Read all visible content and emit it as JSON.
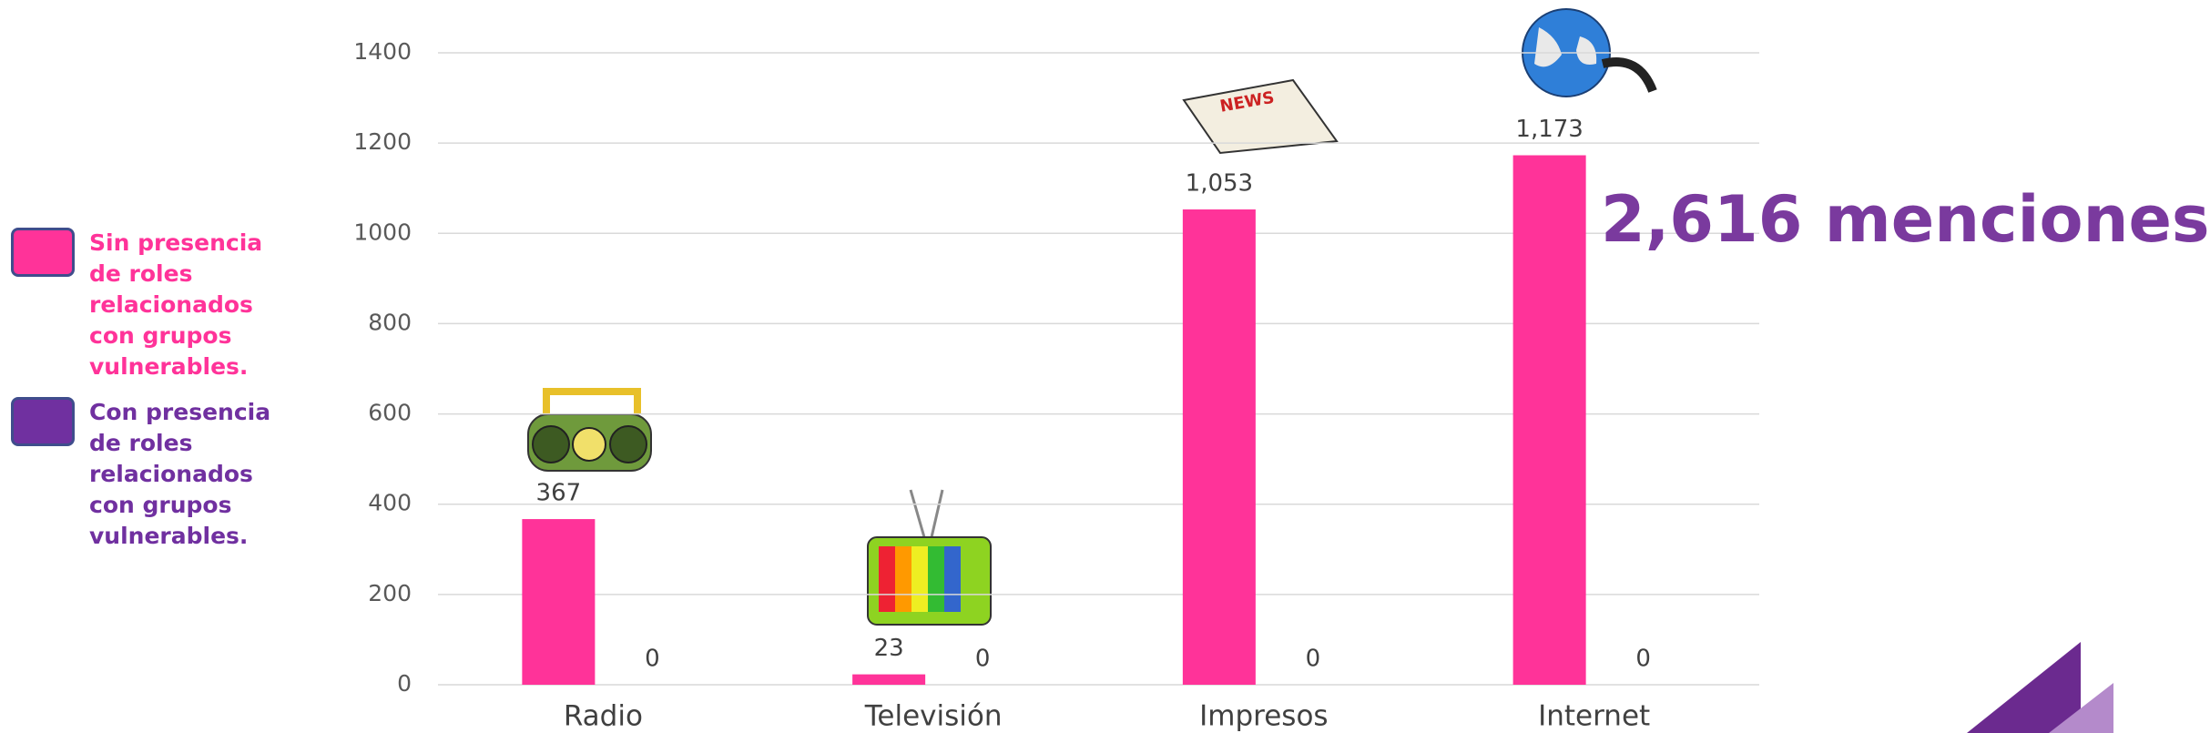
{
  "chart_data": {
    "type": "bar",
    "categories": [
      "Radio",
      "Televisión",
      "Impresos",
      "Internet"
    ],
    "series": [
      {
        "name": "Sin presencia de roles relacionados con grupos vulnerables.",
        "color": "#ff3399",
        "values": [
          367,
          23,
          1053,
          1173
        ],
        "value_labels": [
          "367",
          "23",
          "1,053",
          "1,173"
        ]
      },
      {
        "name": "Con presencia de roles relacionados con grupos vulnerables.",
        "color": "#7030a0",
        "values": [
          0,
          0,
          0,
          0
        ]
      }
    ],
    "ylim": [
      0,
      1400
    ],
    "yticks": [
      0,
      200,
      400,
      600,
      800,
      1000,
      1200,
      1400
    ],
    "grid": true,
    "annotation": "2,616 menciones"
  }
}
